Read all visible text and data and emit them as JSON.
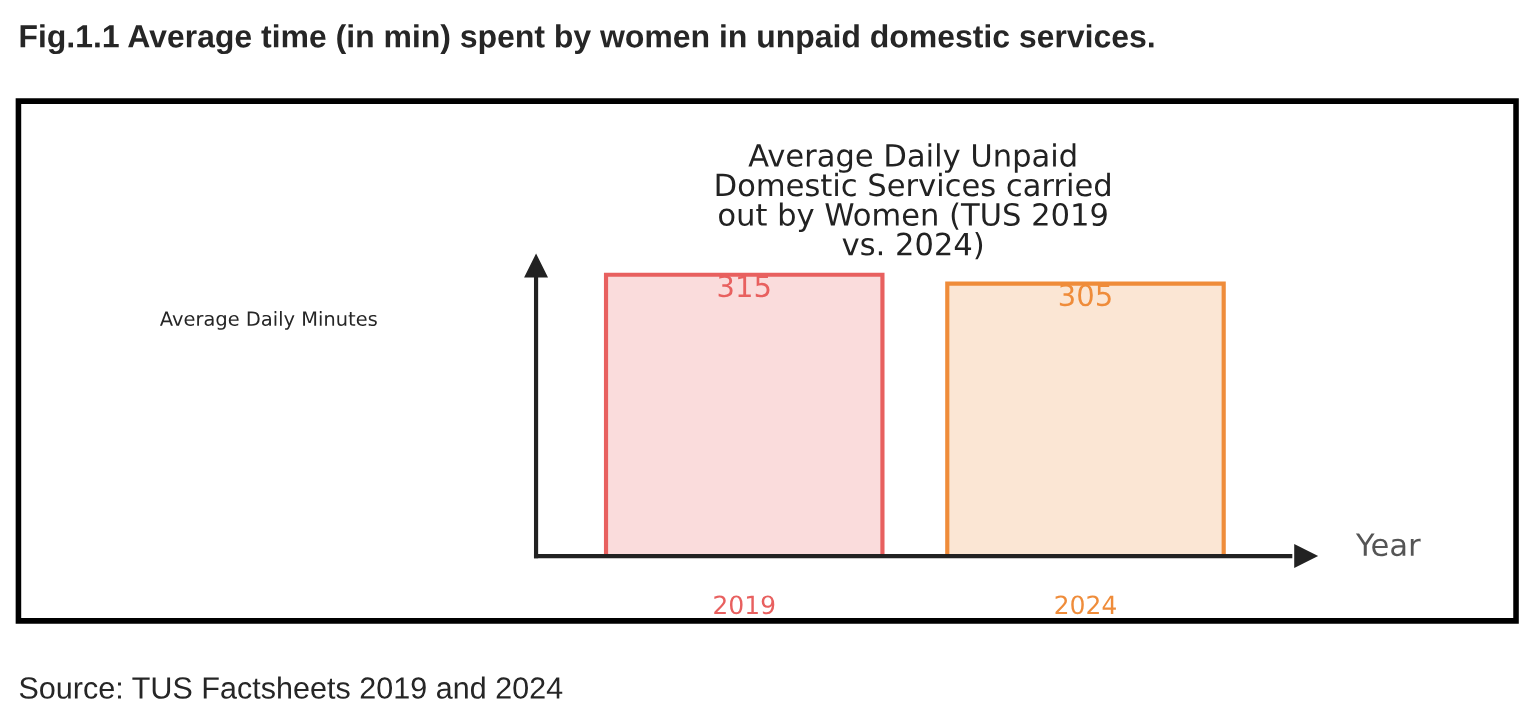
{
  "chart_data": {
    "type": "bar",
    "title": "Average Daily Unpaid\nDomestic Services carried\nout by Women (TUS 2019\nvs. 2024)",
    "subtitle": "Fig.1.1 Average time (in min) spent by women in unpaid domestic services.",
    "xlabel": "Year",
    "categories": [
      "2019",
      "2024"
    ],
    "values": [
      315,
      305
    ],
    "colors": [
      "#e8605f",
      "#ef8c3a"
    ],
    "data_labels": true,
    "tick_labels": "x",
    "grid": false,
    "legend": false,
    "annotations": [
      "Average Daily Minutes",
      "Source: TUS Factsheets 2019 and 2024"
    ]
  }
}
